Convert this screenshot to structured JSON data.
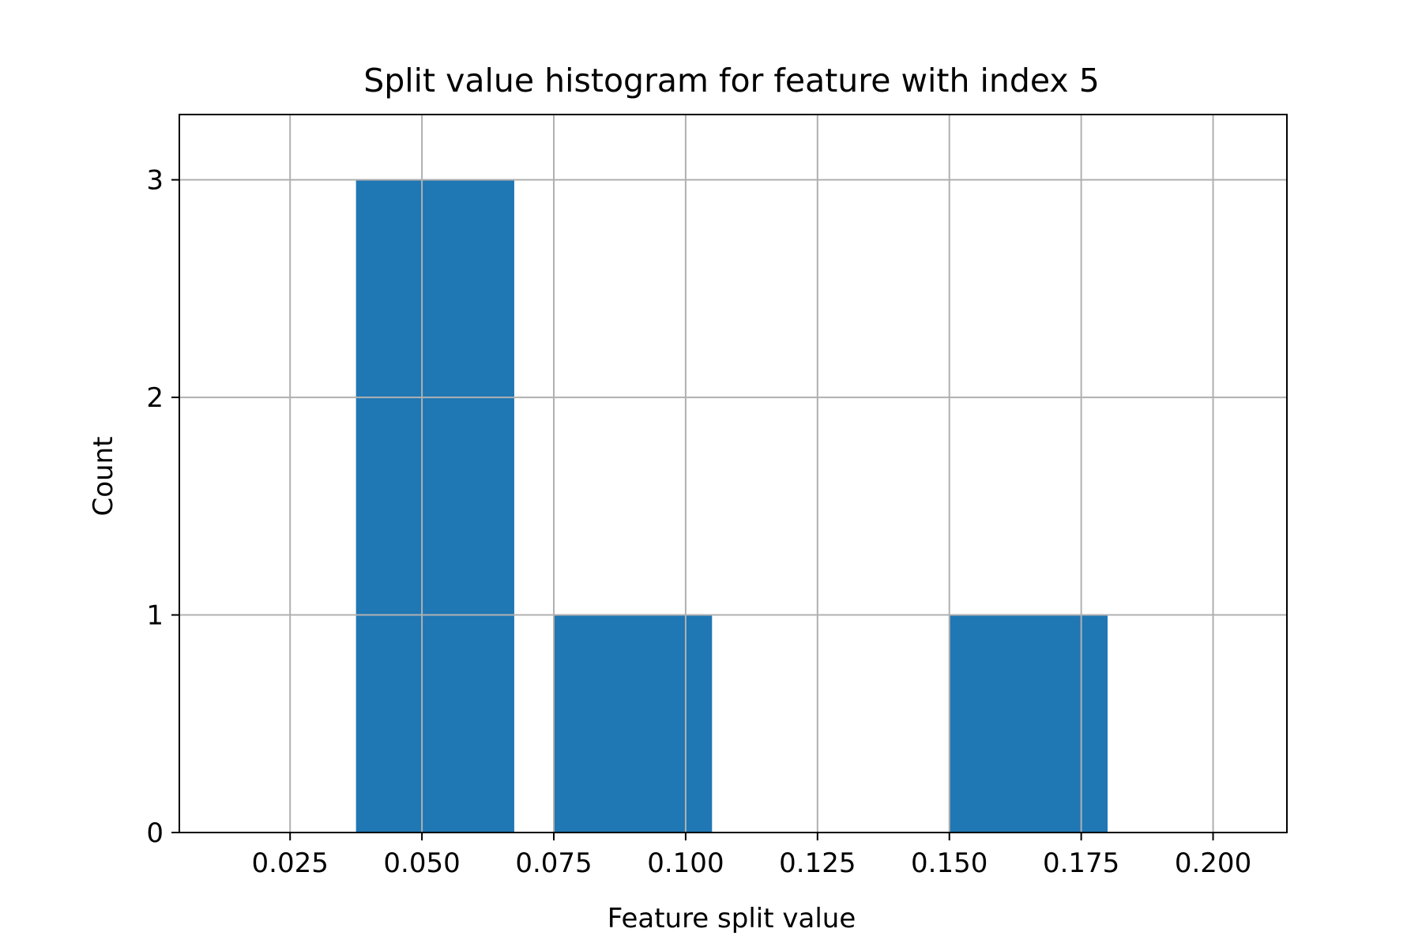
{
  "chart_data": {
    "type": "bar",
    "title": "Split value histogram for feature with index 5",
    "xlabel": "Feature split value",
    "ylabel": "Count",
    "xlim": [
      0.004,
      0.214
    ],
    "ylim": [
      0,
      3.3
    ],
    "x_ticks": [
      0.025,
      0.05,
      0.075,
      0.1,
      0.125,
      0.15,
      0.175,
      0.2
    ],
    "x_tick_labels": [
      "0.025",
      "0.050",
      "0.075",
      "0.100",
      "0.125",
      "0.150",
      "0.175",
      "0.200"
    ],
    "y_ticks": [
      0,
      1,
      2,
      3
    ],
    "y_tick_labels": [
      "0",
      "1",
      "2",
      "3"
    ],
    "bars": [
      {
        "x_start": 0.0375,
        "x_end": 0.0675,
        "value": 3
      },
      {
        "x_start": 0.075,
        "x_end": 0.105,
        "value": 1
      },
      {
        "x_start": 0.15,
        "x_end": 0.18,
        "value": 1
      }
    ],
    "grid": true,
    "legend": "none",
    "colors": {
      "bar": "#1f77b4",
      "grid": "#b0b0b0",
      "axes": "#000000",
      "background": "#ffffff"
    }
  }
}
